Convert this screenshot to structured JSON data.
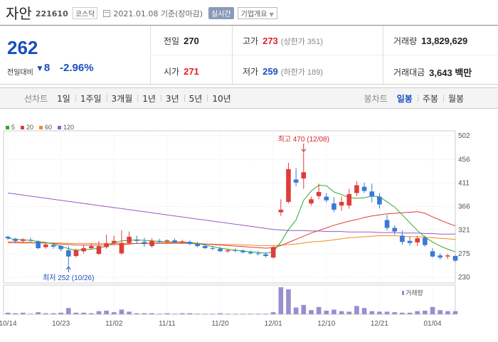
{
  "header": {
    "name": "자안",
    "code": "221610",
    "market": "코스닥",
    "date": "2021.01.08 기준(장마감)",
    "realtime_label": "실시간",
    "company_label": "기업개요"
  },
  "summary": {
    "price": "262",
    "diff_label": "전일대비",
    "diff_value": "8",
    "diff_pct": "-2.96%",
    "prev_close_label": "전일",
    "prev_close": "270",
    "high_label": "고가",
    "high": "273",
    "upper_limit": "(상한가 351)",
    "volume_label": "거래량",
    "volume": "13,829,629",
    "open_label": "시가",
    "open": "271",
    "low_label": "저가",
    "low": "259",
    "lower_limit": "(하한가 189)",
    "amount_label": "거래대금",
    "amount": "3,643 백만"
  },
  "tabs": {
    "line_label": "선차트",
    "line_items": [
      "1일",
      "1주일",
      "3개월",
      "1년",
      "3년",
      "5년",
      "10년"
    ],
    "candle_label": "봉차트",
    "candle_items": [
      "일봉",
      "주봉",
      "월봉"
    ],
    "candle_active": "일봉"
  },
  "legend": [
    {
      "label": "5",
      "color": "#2cab2c"
    },
    {
      "label": "20",
      "color": "#e03c3c"
    },
    {
      "label": "60",
      "color": "#f08a20"
    },
    {
      "label": "120",
      "color": "#9b59c8"
    }
  ],
  "colors": {
    "up": "#e03c3c",
    "down": "#3b78d8",
    "volume": "#9b8dd0"
  },
  "chart_data": {
    "type": "candlestick",
    "ylim": [
      230,
      502
    ],
    "y_ticks": [
      "502",
      "456",
      "411",
      "366",
      "321",
      "275",
      "230"
    ],
    "x_ticks": [
      {
        "i": 0,
        "label": "10/14"
      },
      {
        "i": 7,
        "label": "10/23"
      },
      {
        "i": 14,
        "label": "11/02"
      },
      {
        "i": 21,
        "label": "11/11"
      },
      {
        "i": 28,
        "label": "11/20"
      },
      {
        "i": 35,
        "label": "12/01"
      },
      {
        "i": 42,
        "label": "12/10"
      },
      {
        "i": 49,
        "label": "12/21"
      },
      {
        "i": 56,
        "label": "01/04"
      }
    ],
    "high_annotation": {
      "i": 39,
      "text": "최고 470 (12/08)",
      "value": 470
    },
    "low_annotation": {
      "i": 8,
      "text": "최저 252 (10/26)",
      "value": 252
    },
    "volume_label": "거래량",
    "candles": [
      [
        308,
        310,
        302,
        305
      ],
      [
        304,
        306,
        296,
        300
      ],
      [
        300,
        305,
        297,
        303
      ],
      [
        302,
        306,
        298,
        301
      ],
      [
        299,
        301,
        284,
        286
      ],
      [
        288,
        296,
        285,
        293
      ],
      [
        292,
        296,
        285,
        289
      ],
      [
        290,
        292,
        280,
        284
      ],
      [
        282,
        290,
        252,
        270
      ],
      [
        271,
        285,
        268,
        282
      ],
      [
        280,
        292,
        276,
        286
      ],
      [
        286,
        295,
        283,
        290
      ],
      [
        275,
        300,
        273,
        290
      ],
      [
        288,
        312,
        285,
        295
      ],
      [
        296,
        310,
        292,
        300
      ],
      [
        276,
        320,
        273,
        296
      ],
      [
        296,
        318,
        293,
        308
      ],
      [
        302,
        310,
        295,
        300
      ],
      [
        298,
        306,
        289,
        294
      ],
      [
        290,
        305,
        287,
        300
      ],
      [
        300,
        304,
        296,
        298
      ],
      [
        299,
        303,
        295,
        301
      ],
      [
        301,
        305,
        297,
        297
      ],
      [
        297,
        302,
        295,
        299
      ],
      [
        298,
        301,
        292,
        294
      ],
      [
        294,
        298,
        288,
        290
      ],
      [
        290,
        294,
        285,
        286
      ],
      [
        286,
        290,
        282,
        285
      ],
      [
        285,
        288,
        279,
        280
      ],
      [
        280,
        285,
        277,
        282
      ],
      [
        282,
        286,
        278,
        281
      ],
      [
        281,
        284,
        276,
        278
      ],
      [
        278,
        282,
        274,
        276
      ],
      [
        276,
        280,
        272,
        275
      ],
      [
        274,
        278,
        268,
        271
      ],
      [
        268,
        290,
        266,
        288
      ],
      [
        355,
        380,
        348,
        360
      ],
      [
        375,
        450,
        372,
        438
      ],
      [
        418,
        440,
        405,
        412
      ],
      [
        420,
        470,
        400,
        432
      ],
      [
        372,
        385,
        368,
        380
      ],
      [
        386,
        410,
        380,
        394
      ],
      [
        385,
        392,
        374,
        378
      ],
      [
        372,
        384,
        355,
        360
      ],
      [
        368,
        385,
        358,
        375
      ],
      [
        368,
        400,
        362,
        390
      ],
      [
        392,
        415,
        386,
        407
      ],
      [
        404,
        412,
        392,
        396
      ],
      [
        395,
        410,
        374,
        385
      ],
      [
        385,
        392,
        362,
        370
      ],
      [
        340,
        350,
        320,
        325
      ],
      [
        325,
        330,
        312,
        318
      ],
      [
        310,
        320,
        293,
        298
      ],
      [
        300,
        308,
        291,
        296
      ],
      [
        297,
        310,
        290,
        305
      ],
      [
        306,
        310,
        289,
        292
      ],
      [
        280,
        286,
        268,
        270
      ],
      [
        272,
        276,
        264,
        268
      ],
      [
        270,
        275,
        265,
        272
      ],
      [
        271,
        273,
        259,
        262
      ]
    ],
    "ma5": [
      305,
      303,
      302,
      301,
      299,
      297,
      294,
      290,
      285,
      282,
      283,
      284,
      286,
      290,
      296,
      300,
      301,
      302,
      301,
      300,
      299,
      298,
      298,
      298,
      297,
      295,
      292,
      289,
      286,
      284,
      282,
      281,
      279,
      278,
      276,
      279,
      298,
      322,
      340,
      378,
      396,
      407,
      406,
      394,
      389,
      383,
      382,
      383,
      386,
      385,
      375,
      365,
      350,
      335,
      320,
      307,
      298,
      290,
      284,
      279
    ],
    "ma20": [
      298,
      298,
      297,
      297,
      296,
      296,
      295,
      294,
      293,
      292,
      292,
      292,
      292,
      292,
      293,
      293,
      294,
      295,
      295,
      296,
      296,
      296,
      296,
      296,
      296,
      295,
      294,
      293,
      292,
      291,
      290,
      289,
      288,
      287,
      286,
      287,
      291,
      297,
      303,
      309,
      315,
      320,
      325,
      330,
      334,
      338,
      341,
      345,
      348,
      350,
      352,
      353,
      354,
      355,
      356,
      353,
      346,
      340,
      334,
      329
    ],
    "ma60": [
      296,
      296,
      296,
      296,
      296,
      296,
      296,
      296,
      295,
      295,
      295,
      295,
      295,
      295,
      295,
      295,
      295,
      295,
      295,
      295,
      295,
      295,
      295,
      295,
      295,
      294,
      294,
      294,
      293,
      293,
      293,
      292,
      292,
      291,
      291,
      291,
      292,
      293,
      294,
      296,
      298,
      299,
      300,
      302,
      304,
      306,
      307,
      308,
      309,
      310,
      310,
      310,
      309,
      308,
      308,
      307,
      306,
      305,
      304,
      303
    ],
    "ma120": [
      392,
      390,
      388,
      386,
      384,
      382,
      380,
      378,
      376,
      374,
      372,
      370,
      368,
      366,
      364,
      362,
      360,
      358,
      356,
      354,
      352,
      350,
      348,
      346,
      344,
      342,
      340,
      338,
      336,
      334,
      332,
      330,
      328,
      326,
      324,
      322,
      321,
      320,
      320,
      320,
      319,
      319,
      318,
      318,
      318,
      317,
      317,
      317,
      317,
      316,
      316,
      316,
      315,
      315,
      315,
      314,
      314,
      313,
      313,
      313
    ],
    "volume": [
      3,
      2,
      3,
      1,
      4,
      2,
      2,
      3,
      12,
      3,
      3,
      2,
      6,
      7,
      4,
      9,
      5,
      2,
      2,
      2,
      1,
      2,
      1,
      2,
      2,
      1,
      1,
      1,
      2,
      1,
      1,
      1,
      1,
      1,
      1,
      4,
      52,
      48,
      13,
      18,
      8,
      14,
      7,
      9,
      6,
      5,
      16,
      12,
      6,
      5,
      5,
      4,
      3,
      3,
      6,
      7,
      14,
      8,
      6,
      6
    ]
  }
}
